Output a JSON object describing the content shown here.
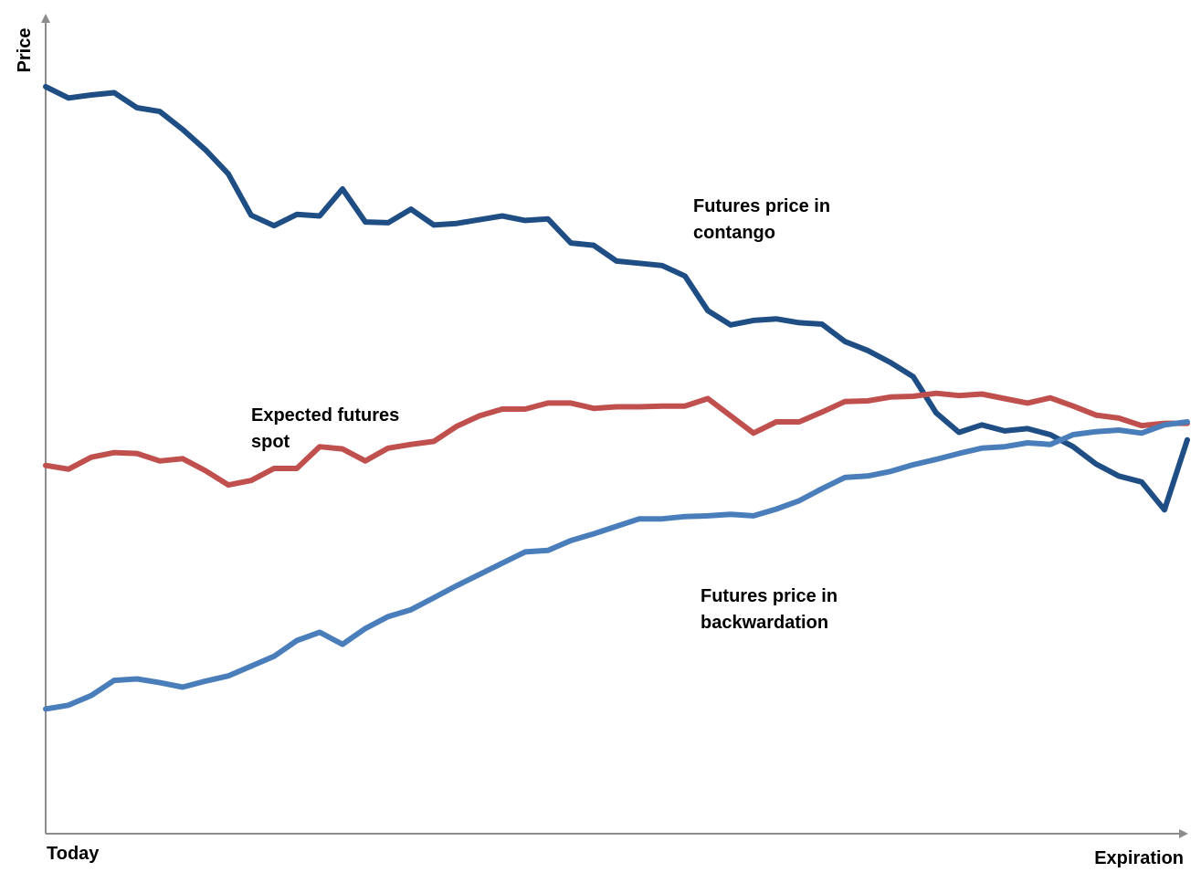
{
  "chart_data": {
    "type": "line",
    "title": "",
    "xlabel": "",
    "ylabel": "Price",
    "x_start_label": "Today",
    "x_end_label": "Expiration",
    "x_ticks_shown": false,
    "y_ticks_shown": false,
    "grid": false,
    "legend": "none",
    "xlim": [
      0,
      100
    ],
    "ylim": [
      0,
      100
    ],
    "colors": {
      "contango": "#1f4e85",
      "expected": "#c0504d",
      "backwardation": "#4a7ebb",
      "axis": "#8c8c8c"
    },
    "annotations": {
      "contango_line1": "Futures price in",
      "contango_line2": "contango",
      "expected_line1": "Expected futures",
      "expected_line2": "spot",
      "backwardation_line1": "Futures price in",
      "backwardation_line2": "backwardation"
    },
    "series": [
      {
        "key": "contango",
        "x": [
          0,
          2,
          4,
          6,
          8,
          10,
          12,
          14,
          16,
          18,
          20,
          22,
          24,
          26,
          28,
          30,
          32,
          34,
          36,
          38,
          40,
          42,
          44,
          46,
          48,
          50,
          52,
          54,
          56,
          58,
          60,
          62,
          64,
          66,
          68,
          70,
          72,
          74,
          76,
          78,
          80,
          82,
          84,
          86,
          88,
          90,
          92,
          94,
          96,
          98,
          100
        ],
        "values": [
          99.4,
          97.9,
          98.3,
          98.6,
          96.6,
          96.1,
          93.7,
          91.0,
          87.8,
          82.3,
          80.9,
          82.4,
          82.2,
          85.8,
          81.4,
          81.3,
          83.1,
          81.0,
          81.2,
          81.7,
          82.2,
          81.6,
          81.8,
          78.6,
          78.3,
          76.2,
          75.9,
          75.6,
          74.2,
          69.6,
          67.7,
          68.3,
          68.5,
          68.0,
          67.8,
          65.5,
          64.3,
          62.7,
          60.8,
          56.0,
          53.4,
          54.4,
          53.6,
          53.9,
          53.1,
          51.5,
          49.2,
          47.6,
          46.8,
          43.1,
          52.4
        ]
      },
      {
        "key": "expected",
        "x": [
          0,
          2,
          4,
          6,
          8,
          10,
          12,
          14,
          16,
          18,
          20,
          22,
          24,
          26,
          28,
          30,
          32,
          34,
          36,
          38,
          40,
          42,
          44,
          46,
          48,
          50,
          52,
          54,
          56,
          58,
          60,
          62,
          64,
          66,
          68,
          70,
          72,
          74,
          76,
          78,
          80,
          82,
          84,
          86,
          88,
          90,
          92,
          94,
          96,
          98,
          100
        ],
        "values": [
          49.0,
          48.5,
          50.1,
          50.7,
          50.6,
          49.6,
          49.9,
          48.3,
          46.4,
          47.0,
          48.6,
          48.6,
          51.5,
          51.2,
          49.6,
          51.3,
          51.8,
          52.2,
          54.2,
          55.6,
          56.5,
          56.5,
          57.3,
          57.3,
          56.6,
          56.8,
          56.8,
          56.9,
          56.9,
          57.9,
          55.6,
          53.3,
          54.8,
          54.8,
          56.1,
          57.5,
          57.6,
          58.1,
          58.2,
          58.6,
          58.3,
          58.5,
          57.9,
          57.3,
          58.0,
          56.9,
          55.7,
          55.3,
          54.3,
          54.6,
          54.6
        ]
      },
      {
        "key": "backwardation",
        "x": [
          0,
          2,
          4,
          6,
          8,
          10,
          12,
          14,
          16,
          18,
          20,
          22,
          24,
          26,
          28,
          30,
          32,
          34,
          36,
          38,
          40,
          42,
          44,
          46,
          48,
          50,
          52,
          54,
          56,
          58,
          60,
          62,
          64,
          66,
          68,
          70,
          72,
          74,
          76,
          78,
          80,
          82,
          84,
          86,
          88,
          90,
          92,
          94,
          96,
          98,
          100
        ],
        "values": [
          16.6,
          17.1,
          18.4,
          20.4,
          20.6,
          20.1,
          19.5,
          20.3,
          21.0,
          22.3,
          23.6,
          25.7,
          26.8,
          25.2,
          27.3,
          28.9,
          29.8,
          31.4,
          33.0,
          34.5,
          36.0,
          37.5,
          37.7,
          39.0,
          39.9,
          40.9,
          41.9,
          41.9,
          42.2,
          42.3,
          42.5,
          42.3,
          43.2,
          44.3,
          45.9,
          47.4,
          47.6,
          48.2,
          49.1,
          49.8,
          50.6,
          51.3,
          51.5,
          52.0,
          51.8,
          53.1,
          53.5,
          53.7,
          53.3,
          54.4,
          54.8
        ]
      }
    ]
  }
}
